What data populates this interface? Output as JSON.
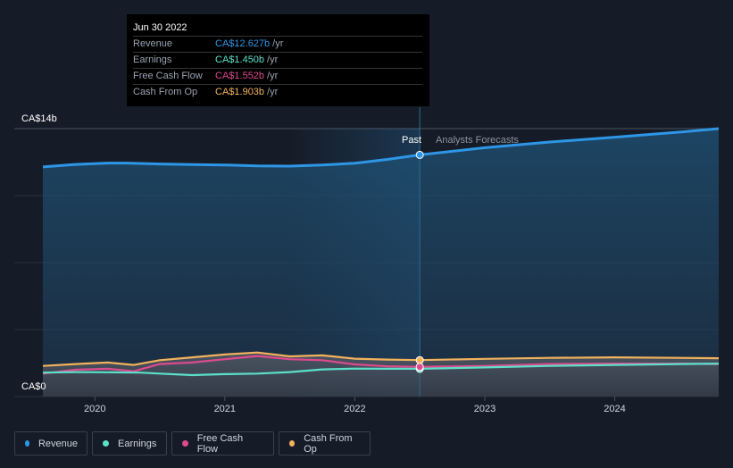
{
  "tooltip": {
    "date": "Jun 30 2022",
    "rows": [
      {
        "label": "Revenue",
        "value": "CA$12.627b",
        "unit": "/yr",
        "color": "#2e96e6"
      },
      {
        "label": "Earnings",
        "value": "CA$1.450b",
        "unit": "/yr",
        "color": "#5ce0c8"
      },
      {
        "label": "Free Cash Flow",
        "value": "CA$1.552b",
        "unit": "/yr",
        "color": "#dd4a8e"
      },
      {
        "label": "Cash From Op",
        "value": "CA$1.903b",
        "unit": "/yr",
        "color": "#f2b25c"
      }
    ]
  },
  "legend": [
    {
      "label": "Revenue",
      "color": "#2e96e6"
    },
    {
      "label": "Earnings",
      "color": "#5ce0c8"
    },
    {
      "label": "Free Cash Flow",
      "color": "#dd4a8e"
    },
    {
      "label": "Cash From Op",
      "color": "#f2b25c"
    }
  ],
  "chart_data": {
    "type": "area",
    "y_unit": "CA$ billions",
    "ylim": [
      0,
      14
    ],
    "y_labels": {
      "top": "CA$14b",
      "bottom": "CA$0"
    },
    "xlim": [
      2019.6,
      2024.8
    ],
    "x_ticks": [
      2020,
      2021,
      2022,
      2023,
      2024
    ],
    "x_tick_labels": [
      "2020",
      "2021",
      "2022",
      "2023",
      "2024"
    ],
    "divider_x": 2022.5,
    "divider_labels": {
      "past": "Past",
      "forecast": "Analysts Forecasts"
    },
    "series": [
      {
        "name": "Revenue",
        "color": "#2e96e6",
        "x": [
          2019.6,
          2019.85,
          2020.1,
          2020.25,
          2020.5,
          2020.75,
          2021.0,
          2021.25,
          2021.5,
          2021.75,
          2022.0,
          2022.25,
          2022.5,
          2023.0,
          2023.5,
          2024.0,
          2024.5,
          2024.8
        ],
        "y": [
          12.0,
          12.13,
          12.2,
          12.2,
          12.15,
          12.12,
          12.1,
          12.05,
          12.04,
          12.1,
          12.19,
          12.39,
          12.627,
          13.0,
          13.3,
          13.55,
          13.82,
          14.0
        ]
      },
      {
        "name": "Earnings",
        "color": "#5ce0c8",
        "x": [
          2019.6,
          2019.85,
          2020.1,
          2020.35,
          2020.5,
          2020.75,
          2021.0,
          2021.25,
          2021.5,
          2021.75,
          2022.0,
          2022.25,
          2022.5,
          2023.0,
          2023.5,
          2024.0,
          2024.5,
          2024.8
        ],
        "y": [
          1.25,
          1.28,
          1.27,
          1.25,
          1.2,
          1.12,
          1.17,
          1.2,
          1.28,
          1.42,
          1.46,
          1.45,
          1.45,
          1.52,
          1.6,
          1.65,
          1.7,
          1.72
        ]
      },
      {
        "name": "Free Cash Flow",
        "color": "#dd4a8e",
        "x": [
          2019.6,
          2019.85,
          2020.1,
          2020.3,
          2020.5,
          2020.75,
          2021.0,
          2021.25,
          2021.5,
          2021.75,
          2022.0,
          2022.25,
          2022.5,
          2023.0,
          2023.5,
          2024.0,
          2024.5,
          2024.8
        ],
        "y": [
          1.2,
          1.4,
          1.45,
          1.32,
          1.7,
          1.78,
          1.95,
          2.12,
          1.95,
          1.9,
          1.68,
          1.58,
          1.552,
          1.6,
          1.7,
          1.72,
          1.72,
          1.7
        ]
      },
      {
        "name": "Cash From Op",
        "color": "#f2b25c",
        "x": [
          2019.6,
          2019.85,
          2020.1,
          2020.3,
          2020.5,
          2020.75,
          2021.0,
          2021.25,
          2021.5,
          2021.75,
          2022.0,
          2022.25,
          2022.5,
          2023.0,
          2023.5,
          2024.0,
          2024.5,
          2024.8
        ],
        "y": [
          1.6,
          1.7,
          1.78,
          1.65,
          1.9,
          2.05,
          2.2,
          2.3,
          2.1,
          2.15,
          1.98,
          1.93,
          1.903,
          1.97,
          2.02,
          2.05,
          2.02,
          2.0
        ]
      }
    ]
  }
}
